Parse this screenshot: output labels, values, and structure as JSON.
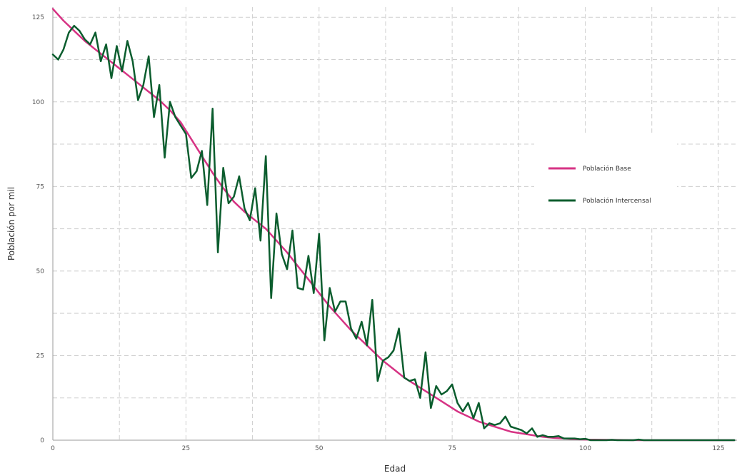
{
  "chart_data": {
    "type": "line",
    "xlabel": "Edad",
    "ylabel": "Población por mil",
    "xlim": [
      0,
      128.5
    ],
    "ylim": [
      0,
      128
    ],
    "x_ticks": [
      0,
      25,
      50,
      75,
      100,
      125
    ],
    "y_ticks": [
      0,
      25,
      50,
      75,
      100,
      125
    ],
    "grid": true,
    "legend_position": "right",
    "series": [
      {
        "name": "Población Base",
        "color": "#d63384",
        "x": [
          0,
          2,
          4,
          6,
          8,
          10,
          12,
          14,
          16,
          18,
          20,
          22,
          24,
          26,
          28,
          30,
          32,
          34,
          36,
          38,
          40,
          42,
          44,
          46,
          48,
          50,
          52,
          54,
          56,
          58,
          60,
          62,
          64,
          66,
          68,
          70,
          72,
          74,
          76,
          78,
          80,
          82,
          84,
          86,
          88,
          90,
          92,
          94,
          96,
          98,
          100,
          105,
          110,
          115,
          120,
          125,
          128
        ],
        "y": [
          127.5,
          124,
          121,
          118,
          115.5,
          113,
          110.5,
          108,
          105.5,
          103,
          100.5,
          97.5,
          94,
          89,
          84,
          79,
          74.5,
          70.5,
          67.5,
          65,
          62.5,
          59,
          55.5,
          51.5,
          47.5,
          43.5,
          39.5,
          36,
          32.5,
          29.5,
          26.5,
          23.5,
          21,
          18.5,
          16.5,
          14.5,
          12.5,
          10.5,
          8.5,
          7,
          5.5,
          4.5,
          3.5,
          2.5,
          2,
          1.5,
          1,
          0.7,
          0.5,
          0.3,
          0.2,
          0.1,
          0,
          0,
          0,
          0,
          0
        ]
      },
      {
        "name": "Población Intercensal",
        "color": "#0b5d2e",
        "x": [
          0,
          1,
          2,
          3,
          4,
          5,
          6,
          7,
          8,
          9,
          10,
          11,
          12,
          13,
          14,
          15,
          16,
          17,
          18,
          19,
          20,
          21,
          22,
          23,
          24,
          25,
          26,
          27,
          28,
          29,
          30,
          31,
          32,
          33,
          34,
          35,
          36,
          37,
          38,
          39,
          40,
          41,
          42,
          43,
          44,
          45,
          46,
          47,
          48,
          49,
          50,
          51,
          52,
          53,
          54,
          55,
          56,
          57,
          58,
          59,
          60,
          61,
          62,
          63,
          64,
          65,
          66,
          67,
          68,
          69,
          70,
          71,
          72,
          73,
          74,
          75,
          76,
          77,
          78,
          79,
          80,
          81,
          82,
          83,
          84,
          85,
          86,
          87,
          88,
          89,
          90,
          91,
          92,
          93,
          94,
          95,
          96,
          97,
          98,
          99,
          100,
          101,
          102,
          103,
          104,
          105,
          106,
          107,
          108,
          109,
          110,
          111,
          112,
          113,
          114,
          115,
          116,
          117,
          118,
          119,
          120,
          121,
          122,
          123,
          124,
          125,
          126,
          127,
          128
        ],
        "y": [
          114,
          112.5,
          115.5,
          120.5,
          122.5,
          121,
          118.5,
          117,
          120.5,
          112,
          117,
          107,
          116.5,
          109,
          118,
          112,
          100.5,
          105,
          113.5,
          95.5,
          105,
          83.5,
          100,
          95.5,
          93,
          90.5,
          77.5,
          79.5,
          85.5,
          69.5,
          98,
          55.5,
          80.5,
          70,
          72,
          78,
          68.5,
          65,
          74.5,
          59,
          84,
          42,
          67,
          55,
          50.5,
          62,
          45,
          44.5,
          54.5,
          43.5,
          61,
          29.5,
          45,
          38,
          41,
          41,
          33,
          30,
          35,
          28,
          41.5,
          17.5,
          23.5,
          24.5,
          26.5,
          33,
          18.5,
          17.5,
          18,
          12.5,
          26,
          9.5,
          16,
          13.5,
          14.5,
          16.5,
          11,
          8.5,
          11,
          6.5,
          11,
          3.5,
          5,
          4.5,
          5,
          7,
          4,
          3.5,
          3,
          2,
          3.5,
          1,
          1.5,
          1,
          1,
          1.2,
          0.5,
          0.5,
          0.5,
          0.3,
          0.4,
          0,
          0,
          0,
          0,
          0.1,
          0,
          0,
          0,
          0,
          0.2,
          0,
          0,
          0,
          0,
          0,
          0,
          0,
          0,
          0,
          0,
          0,
          0,
          0,
          0,
          0,
          0,
          0,
          0
        ]
      }
    ]
  }
}
